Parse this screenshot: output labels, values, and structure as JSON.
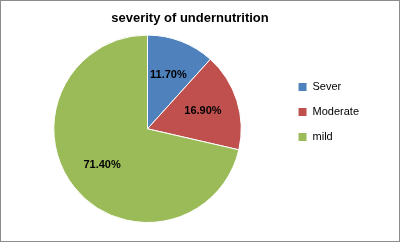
{
  "chart_data": {
    "type": "pie",
    "title": "severity of undernutrition",
    "categories": [
      "Sever",
      "Moderate",
      "mild"
    ],
    "values": [
      11.7,
      16.9,
      71.4
    ],
    "value_labels": [
      "11.70%",
      "16.90%",
      "71.40%"
    ],
    "colors": [
      "#4f81bd",
      "#c0504d",
      "#9bbb59"
    ],
    "legend": "right",
    "data_labels": true
  }
}
